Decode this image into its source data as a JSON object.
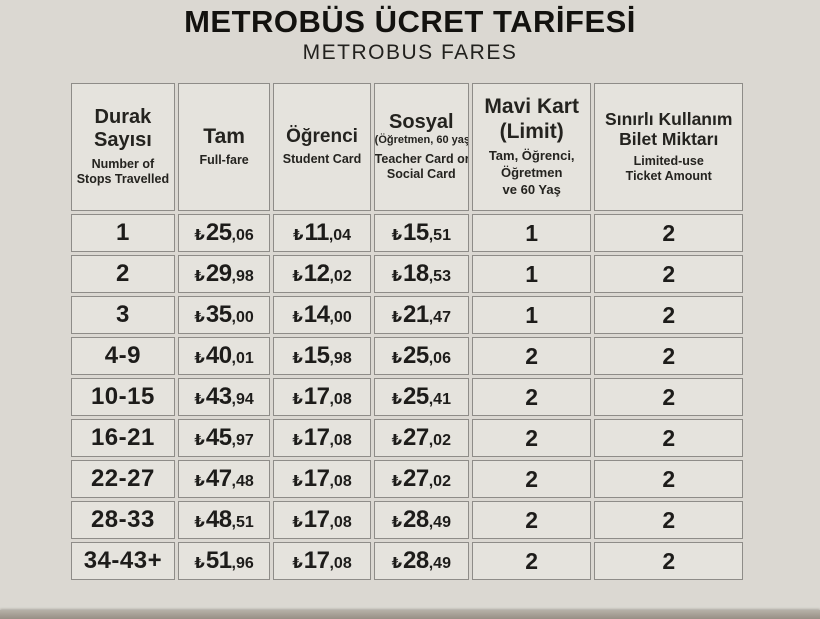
{
  "title": "METROBÜS ÜCRET TARİFESİ",
  "subtitle": "METROBUS FARES",
  "currency_symbol": "₺",
  "table": {
    "headers": [
      {
        "tr_lines": [
          "Durak",
          "Sayısı"
        ],
        "en_lines": [
          "Number of",
          "Stops Travelled"
        ]
      },
      {
        "tr_lines": [
          "Tam"
        ],
        "en_lines": [
          "Full-fare"
        ]
      },
      {
        "tr_lines": [
          "Öğrenci"
        ],
        "en_lines": [
          "Student Card"
        ]
      },
      {
        "tr_lines": [
          "Sosyal"
        ],
        "sub_lines": [
          "(Öğretmen, 60 yaş)"
        ],
        "en_lines": [
          "Teacher Card or",
          "Social Card"
        ]
      },
      {
        "tr_lines": [
          "Mavi Kart",
          "(Limit)"
        ],
        "sub_lines": [
          "Tam, Öğrenci,",
          "Öğretmen",
          "ve 60 Yaş"
        ]
      },
      {
        "tr_lines": [
          "Sınırlı Kullanım",
          "Bilet Miktarı"
        ],
        "en_lines": [
          "Limited-use",
          "Ticket Amount"
        ]
      }
    ],
    "rows": [
      {
        "stops": "1",
        "tam": {
          "i": "25",
          "d": ",06"
        },
        "ogrenci": {
          "i": "11",
          "d": ",04"
        },
        "sosyal": {
          "i": "15",
          "d": ",51"
        },
        "mavi": "1",
        "bilet": "2"
      },
      {
        "stops": "2",
        "tam": {
          "i": "29",
          "d": ",98"
        },
        "ogrenci": {
          "i": "12",
          "d": ",02"
        },
        "sosyal": {
          "i": "18",
          "d": ",53"
        },
        "mavi": "1",
        "bilet": "2"
      },
      {
        "stops": "3",
        "tam": {
          "i": "35",
          "d": ",00"
        },
        "ogrenci": {
          "i": "14",
          "d": ",00"
        },
        "sosyal": {
          "i": "21",
          "d": ",47"
        },
        "mavi": "1",
        "bilet": "2"
      },
      {
        "stops": "4-9",
        "tam": {
          "i": "40",
          "d": ",01"
        },
        "ogrenci": {
          "i": "15",
          "d": ",98"
        },
        "sosyal": {
          "i": "25",
          "d": ",06"
        },
        "mavi": "2",
        "bilet": "2"
      },
      {
        "stops": "10-15",
        "tam": {
          "i": "43",
          "d": ",94"
        },
        "ogrenci": {
          "i": "17",
          "d": ",08"
        },
        "sosyal": {
          "i": "25",
          "d": ",41"
        },
        "mavi": "2",
        "bilet": "2"
      },
      {
        "stops": "16-21",
        "tam": {
          "i": "45",
          "d": ",97"
        },
        "ogrenci": {
          "i": "17",
          "d": ",08"
        },
        "sosyal": {
          "i": "27",
          "d": ",02"
        },
        "mavi": "2",
        "bilet": "2"
      },
      {
        "stops": "22-27",
        "tam": {
          "i": "47",
          "d": ",48"
        },
        "ogrenci": {
          "i": "17",
          "d": ",08"
        },
        "sosyal": {
          "i": "27",
          "d": ",02"
        },
        "mavi": "2",
        "bilet": "2"
      },
      {
        "stops": "28-33",
        "tam": {
          "i": "48",
          "d": ",51"
        },
        "ogrenci": {
          "i": "17",
          "d": ",08"
        },
        "sosyal": {
          "i": "28",
          "d": ",49"
        },
        "mavi": "2",
        "bilet": "2"
      },
      {
        "stops": "34-43+",
        "tam": {
          "i": "51",
          "d": ",96"
        },
        "ogrenci": {
          "i": "17",
          "d": ",08"
        },
        "sosyal": {
          "i": "28",
          "d": ",49"
        },
        "mavi": "2",
        "bilet": "2"
      }
    ]
  },
  "colors": {
    "page_background": "#dbd8d2",
    "cell_background": "#e5e3dd",
    "cell_border": "#8e8c88",
    "text": "#1d1c1a",
    "bottom_strip": "#978f85"
  }
}
